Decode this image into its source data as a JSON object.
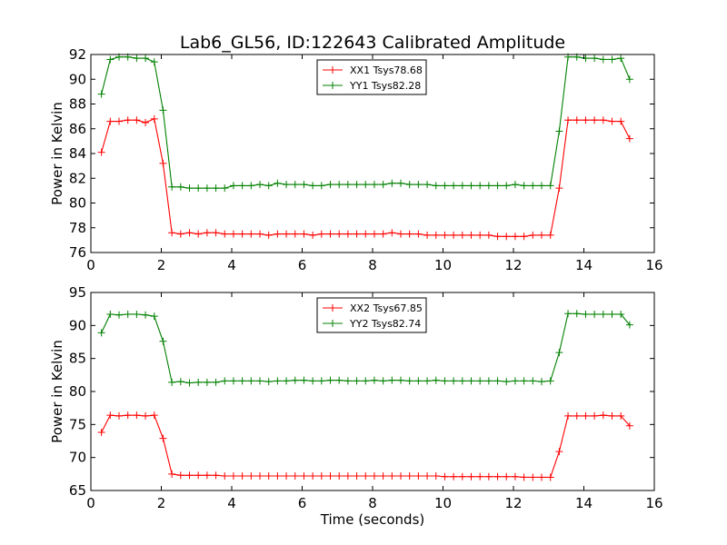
{
  "title": "Lab6_GL56, ID:122643 Calibrated Amplitude",
  "chart_data": [
    {
      "type": "line",
      "ylabel": "Power in Kelvin",
      "xlabel": "",
      "xlim": [
        0,
        16
      ],
      "ylim": [
        76,
        92
      ],
      "xticks": [
        0,
        2,
        4,
        6,
        8,
        10,
        12,
        14,
        16
      ],
      "yticks": [
        76,
        78,
        80,
        82,
        84,
        86,
        88,
        90,
        92
      ],
      "legend_position": "top-center",
      "x": [
        0.3,
        0.55,
        0.8,
        1.05,
        1.3,
        1.55,
        1.8,
        2.05,
        2.3,
        2.55,
        2.8,
        3.05,
        3.3,
        3.55,
        3.8,
        4.05,
        4.3,
        4.55,
        4.8,
        5.05,
        5.3,
        5.55,
        5.8,
        6.05,
        6.3,
        6.55,
        6.8,
        7.05,
        7.3,
        7.55,
        7.8,
        8.05,
        8.3,
        8.55,
        8.8,
        9.05,
        9.3,
        9.55,
        9.8,
        10.05,
        10.3,
        10.55,
        10.8,
        11.05,
        11.3,
        11.55,
        11.8,
        12.05,
        12.3,
        12.55,
        12.8,
        13.05,
        13.3,
        13.55,
        13.8,
        14.05,
        14.3,
        14.55,
        14.8,
        15.05,
        15.3
      ],
      "series": [
        {
          "name": "XX1 Tsys78.68",
          "color": "#ff0000",
          "values": [
            84.1,
            86.6,
            86.6,
            86.7,
            86.7,
            86.5,
            86.8,
            83.2,
            77.6,
            77.5,
            77.6,
            77.5,
            77.6,
            77.6,
            77.5,
            77.5,
            77.5,
            77.5,
            77.5,
            77.4,
            77.5,
            77.5,
            77.5,
            77.5,
            77.4,
            77.5,
            77.5,
            77.5,
            77.5,
            77.5,
            77.5,
            77.5,
            77.5,
            77.6,
            77.5,
            77.5,
            77.5,
            77.4,
            77.4,
            77.4,
            77.4,
            77.4,
            77.4,
            77.4,
            77.4,
            77.3,
            77.3,
            77.3,
            77.3,
            77.4,
            77.4,
            77.4,
            81.2,
            86.7,
            86.7,
            86.7,
            86.7,
            86.7,
            86.6,
            86.6,
            85.2
          ]
        },
        {
          "name": "YY1 Tsys82.28",
          "color": "#008000",
          "values": [
            88.8,
            91.6,
            91.8,
            91.8,
            91.7,
            91.7,
            91.4,
            87.5,
            81.3,
            81.3,
            81.2,
            81.2,
            81.2,
            81.2,
            81.2,
            81.4,
            81.4,
            81.4,
            81.5,
            81.4,
            81.6,
            81.5,
            81.5,
            81.5,
            81.4,
            81.4,
            81.5,
            81.5,
            81.5,
            81.5,
            81.5,
            81.5,
            81.5,
            81.6,
            81.6,
            81.5,
            81.5,
            81.5,
            81.4,
            81.4,
            81.4,
            81.4,
            81.4,
            81.4,
            81.4,
            81.4,
            81.4,
            81.5,
            81.4,
            81.4,
            81.4,
            81.4,
            85.8,
            91.8,
            91.8,
            91.7,
            91.7,
            91.6,
            91.6,
            91.7,
            90.0
          ]
        }
      ]
    },
    {
      "type": "line",
      "ylabel": "Power in Kelvin",
      "xlabel": "Time (seconds)",
      "xlim": [
        0,
        16
      ],
      "ylim": [
        65,
        95
      ],
      "xticks": [
        0,
        2,
        4,
        6,
        8,
        10,
        12,
        14,
        16
      ],
      "yticks": [
        65,
        70,
        75,
        80,
        85,
        90,
        95
      ],
      "legend_position": "top-center",
      "x": [
        0.3,
        0.55,
        0.8,
        1.05,
        1.3,
        1.55,
        1.8,
        2.05,
        2.3,
        2.55,
        2.8,
        3.05,
        3.3,
        3.55,
        3.8,
        4.05,
        4.3,
        4.55,
        4.8,
        5.05,
        5.3,
        5.55,
        5.8,
        6.05,
        6.3,
        6.55,
        6.8,
        7.05,
        7.3,
        7.55,
        7.8,
        8.05,
        8.3,
        8.55,
        8.8,
        9.05,
        9.3,
        9.55,
        9.8,
        10.05,
        10.3,
        10.55,
        10.8,
        11.05,
        11.3,
        11.55,
        11.8,
        12.05,
        12.3,
        12.55,
        12.8,
        13.05,
        13.3,
        13.55,
        13.8,
        14.05,
        14.3,
        14.55,
        14.8,
        15.05,
        15.3
      ],
      "series": [
        {
          "name": "XX2 Tsys67.85",
          "color": "#ff0000",
          "values": [
            73.8,
            76.4,
            76.3,
            76.4,
            76.4,
            76.3,
            76.4,
            72.9,
            67.5,
            67.3,
            67.3,
            67.3,
            67.3,
            67.3,
            67.2,
            67.2,
            67.2,
            67.2,
            67.2,
            67.2,
            67.2,
            67.2,
            67.2,
            67.2,
            67.2,
            67.2,
            67.2,
            67.2,
            67.2,
            67.2,
            67.2,
            67.2,
            67.2,
            67.2,
            67.2,
            67.2,
            67.2,
            67.2,
            67.2,
            67.1,
            67.1,
            67.1,
            67.1,
            67.1,
            67.1,
            67.1,
            67.1,
            67.1,
            67.0,
            67.0,
            67.0,
            67.0,
            70.9,
            76.3,
            76.3,
            76.3,
            76.3,
            76.4,
            76.3,
            76.3,
            74.8
          ]
        },
        {
          "name": "YY2 Tsys82.74",
          "color": "#008000",
          "values": [
            88.9,
            91.7,
            91.6,
            91.7,
            91.7,
            91.6,
            91.4,
            87.6,
            81.4,
            81.5,
            81.3,
            81.4,
            81.4,
            81.4,
            81.6,
            81.6,
            81.6,
            81.6,
            81.6,
            81.5,
            81.6,
            81.6,
            81.7,
            81.7,
            81.6,
            81.6,
            81.7,
            81.7,
            81.6,
            81.6,
            81.6,
            81.7,
            81.6,
            81.7,
            81.7,
            81.6,
            81.6,
            81.6,
            81.7,
            81.6,
            81.6,
            81.6,
            81.6,
            81.6,
            81.6,
            81.6,
            81.5,
            81.6,
            81.6,
            81.6,
            81.5,
            81.6,
            85.9,
            91.8,
            91.8,
            91.7,
            91.7,
            91.7,
            91.7,
            91.7,
            90.1
          ]
        }
      ]
    }
  ]
}
